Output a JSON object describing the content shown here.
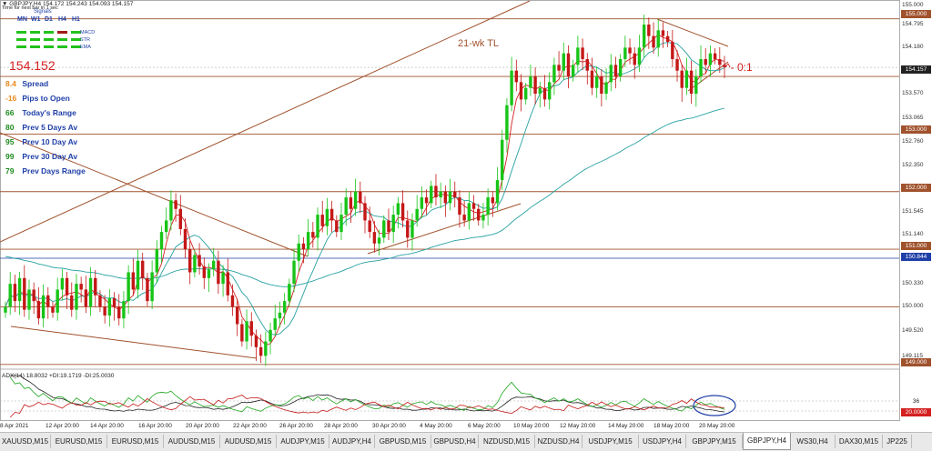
{
  "header": {
    "symbol_line": "GBPJPY,H4  154.172 154.243 154.093 154.157",
    "sub_line": "Time for next bar in 1 sec",
    "signals_title": "Signals"
  },
  "timeframes": [
    "MN",
    "W1",
    "D1",
    "H4",
    "H1"
  ],
  "signal_rows": [
    {
      "label": "MACD",
      "colors": [
        "#22c21c",
        "#22c21c",
        "#22c21c",
        "#a01a1a",
        "#22c21c"
      ]
    },
    {
      "label": "STR",
      "colors": [
        "#22c21c",
        "#22c21c",
        "#22c21c",
        "#22c21c",
        "#22c21c"
      ]
    },
    {
      "label": "EMA",
      "colors": [
        "#22c21c",
        "#22c21c",
        "#22c21c",
        "#22c21c",
        "#22c21c"
      ]
    }
  ],
  "big_price": "154.152",
  "info_panel": [
    {
      "value": "8.4",
      "label": "Spread",
      "color": "#e88a1b",
      "label_color": "#1f3fa8"
    },
    {
      "value": "-16",
      "label": "Pips to Open",
      "color": "#e88a1b",
      "label_color": "#1f3fa8"
    },
    {
      "value": "66",
      "label": "Today's Range",
      "color": "#1e8a1e",
      "label_color": "#1f3fa8"
    },
    {
      "value": "80",
      "label": "Prev 5 Days Av",
      "color": "#1e8a1e",
      "label_color": "#1f3fa8"
    },
    {
      "value": "95",
      "label": "Prev 10 Day Av",
      "color": "#1e8a1e",
      "label_color": "#1f3fa8"
    },
    {
      "value": "99",
      "label": "Prev 30 Day Av",
      "color": "#1e8a1e",
      "label_color": "#1f3fa8"
    },
    {
      "value": "79",
      "label": "Prev Days Range",
      "color": "#1e8a1e",
      "label_color": "#1f3fa8"
    }
  ],
  "annotations": {
    "trendline_label": "21-wk TL",
    "ratio_label": "^- 0:1"
  },
  "price_axis": {
    "labels": [
      "155.000",
      "154.795",
      "154.180",
      "153.570",
      "153.065",
      "152.760",
      "152.350",
      "151.950",
      "151.545",
      "151.140",
      "150.735",
      "150.330",
      "150.000",
      "149.520",
      "149.115"
    ],
    "current_price": "154.157",
    "line_label": "150.844",
    "level_boxes": [
      "154.000",
      "153.000",
      "152.000",
      "151.000",
      "149.000"
    ]
  },
  "chart_data": {
    "type": "candlestick",
    "symbol": "GBPJPY",
    "timeframe": "H4",
    "horizontal_levels": [
      155.0,
      154.0,
      153.0,
      152.0,
      151.0,
      150.0,
      149.0
    ],
    "ema_line_level": 150.844,
    "current_price": 154.157,
    "ohlc_latest": {
      "open": 154.172,
      "high": 154.243,
      "low": 154.093,
      "close": 154.157
    },
    "ylim": [
      148.95,
      155.2
    ],
    "closes": [
      150.0,
      150.4,
      150.1,
      150.5,
      149.95,
      150.3,
      150.1,
      149.8,
      150.2,
      150.0,
      149.9,
      150.3,
      150.5,
      150.2,
      149.95,
      150.4,
      150.3,
      150.0,
      150.5,
      150.2,
      150.0,
      149.85,
      150.15,
      150.0,
      149.8,
      150.1,
      150.6,
      150.3,
      150.8,
      150.5,
      150.1,
      150.6,
      151.0,
      151.3,
      151.5,
      151.85,
      151.7,
      151.35,
      151.0,
      150.6,
      150.9,
      150.7,
      150.5,
      150.65,
      150.8,
      150.4,
      150.6,
      150.2,
      150.0,
      149.7,
      149.4,
      149.75,
      149.5,
      149.3,
      149.15,
      149.4,
      149.6,
      149.8,
      149.9,
      150.1,
      150.4,
      150.8,
      151.1,
      151.0,
      151.3,
      151.2,
      151.6,
      151.4,
      151.7,
      151.5,
      151.3,
      151.6,
      151.9,
      151.7,
      152.0,
      151.8,
      151.5,
      151.3,
      151.1,
      151.2,
      151.5,
      151.3,
      151.6,
      151.8,
      151.5,
      151.2,
      151.5,
      151.7,
      151.9,
      151.8,
      152.1,
      151.9,
      152.0,
      151.8,
      152.0,
      151.9,
      151.6,
      151.5,
      151.8,
      151.7,
      151.5,
      151.6,
      151.9,
      151.8,
      152.2,
      152.9,
      153.5,
      154.1,
      153.9,
      153.6,
      153.8,
      154.0,
      153.7,
      153.8,
      153.6,
      153.9,
      154.2,
      154.1,
      154.4,
      154.0,
      154.2,
      154.5,
      154.3,
      154.1,
      153.8,
      154.0,
      153.7,
      153.9,
      154.2,
      154.0,
      154.3,
      154.5,
      154.4,
      154.2,
      154.5,
      154.9,
      154.7,
      154.5,
      154.8,
      154.7,
      154.6,
      154.3,
      154.1,
      153.8,
      154.1,
      153.7,
      154.0,
      154.3,
      154.2,
      154.4,
      154.3,
      154.2,
      154.16
    ],
    "indicator": {
      "name": "ADX(14)",
      "adx": 18.8032,
      "plus_di": 19.1719,
      "minus_di": 25.003,
      "levels": [
        36,
        20
      ],
      "label": "ADX(14) 18.8032 +DI:19.1719 -DI:25.0030"
    },
    "x_tick_labels": [
      "8 Apr 2021",
      "12 Apr 20:00",
      "14 Apr 20:00",
      "16 Apr 20:00",
      "20 Apr 20:00",
      "22 Apr 20:00",
      "26 Apr 20:00",
      "28 Apr 20:00",
      "30 Apr 20:00",
      "4 May 20:00",
      "6 May 20:00",
      "10 May 20:00",
      "12 May 20:00",
      "14 May 20:00",
      "18 May 20:00",
      "20 May 20:00"
    ]
  },
  "tabs": [
    {
      "label": "XAUUSD,M15",
      "active": false
    },
    {
      "label": "EURUSD,M15",
      "active": false
    },
    {
      "label": "EURUSD,M15",
      "active": false
    },
    {
      "label": "AUDUSD,M15",
      "active": false
    },
    {
      "label": "AUDUSD,M15",
      "active": false
    },
    {
      "label": "AUDJPY,M15",
      "active": false
    },
    {
      "label": "AUDJPY,H4",
      "active": false
    },
    {
      "label": "GBPUSD,M15",
      "active": false
    },
    {
      "label": "GBPUSD,H4",
      "active": false
    },
    {
      "label": "NZDUSD,M15",
      "active": false
    },
    {
      "label": "NZDUSD,H4",
      "active": false
    },
    {
      "label": "USDJPY,M15",
      "active": false
    },
    {
      "label": "USDJPY,H4",
      "active": false
    },
    {
      "label": "GBPJPY,M15",
      "active": false
    },
    {
      "label": "GBPJPY,H4",
      "active": true
    },
    {
      "label": "WS30,H4",
      "active": false
    },
    {
      "label": "DAX30,M15",
      "active": false
    },
    {
      "label": "JP225",
      "active": false
    }
  ]
}
